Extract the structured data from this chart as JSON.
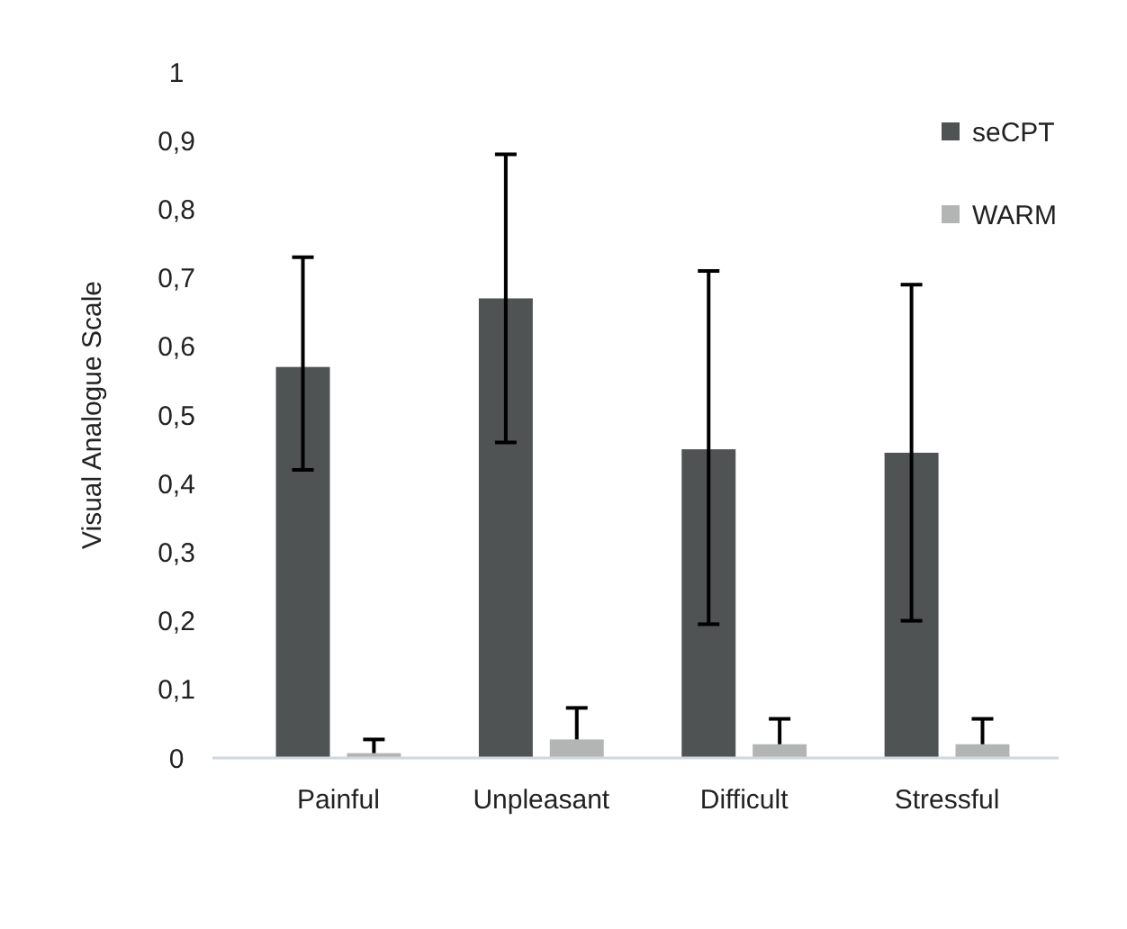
{
  "chart_data": {
    "type": "bar",
    "ylabel": "Visual Analogue Scale",
    "categories": [
      "Painful",
      "Unpleasant",
      "Difficult",
      "Stressful"
    ],
    "series": [
      {
        "name": "seCPT",
        "color": "#505353",
        "values": [
          0.57,
          0.67,
          0.45,
          0.445
        ],
        "errors": [
          [
            0.42,
            0.73
          ],
          [
            0.46,
            0.88
          ],
          [
            0.195,
            0.71
          ],
          [
            0.2,
            0.69
          ]
        ]
      },
      {
        "name": "WARM",
        "color": "#b3b5b5",
        "values": [
          0.007,
          0.027,
          0.02,
          0.02
        ],
        "errors": [
          [
            0.007,
            0.027
          ],
          [
            0.027,
            0.073
          ],
          [
            0.02,
            0.057
          ],
          [
            0.02,
            0.057
          ]
        ]
      }
    ],
    "ylim": [
      0,
      1
    ],
    "yticks": [
      {
        "value": 0,
        "label": "0"
      },
      {
        "value": 0.1,
        "label": "0,1"
      },
      {
        "value": 0.2,
        "label": "0,2"
      },
      {
        "value": 0.3,
        "label": "0,3"
      },
      {
        "value": 0.4,
        "label": "0,4"
      },
      {
        "value": 0.5,
        "label": "0,5"
      },
      {
        "value": 0.6,
        "label": "0,6"
      },
      {
        "value": 0.7,
        "label": "0,7"
      },
      {
        "value": 0.8,
        "label": "0,8"
      },
      {
        "value": 0.9,
        "label": "0,9"
      },
      {
        "value": 1,
        "label": "1"
      }
    ],
    "grid": false,
    "legend": "top right"
  }
}
